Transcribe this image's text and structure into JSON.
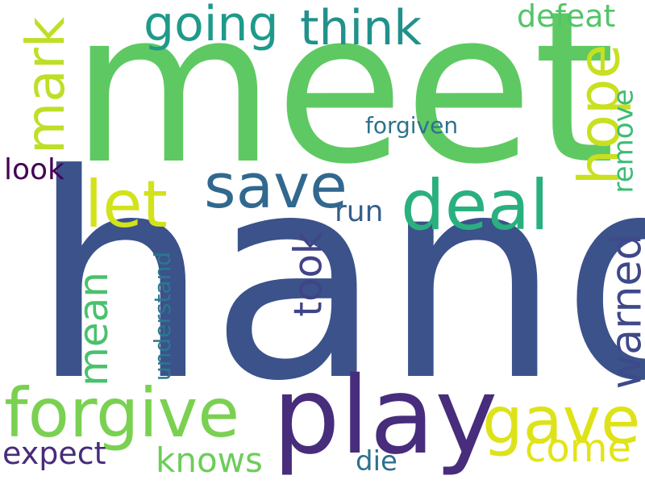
{
  "words": [
    {
      "key": "hand",
      "text": "hand",
      "color": "#3b528b"
    },
    {
      "key": "meet",
      "text": "meet",
      "color": "#5ec962"
    },
    {
      "key": "play",
      "text": "play",
      "color": "#472d7b"
    },
    {
      "key": "save",
      "text": "save",
      "color": "#31688e"
    },
    {
      "key": "deal",
      "text": "deal",
      "color": "#2ab07f"
    },
    {
      "key": "forgive",
      "text": "forgive",
      "color": "#7ad151"
    },
    {
      "key": "gave",
      "text": "gave",
      "color": "#dde318"
    },
    {
      "key": "let",
      "text": "let",
      "color": "#d2e21b"
    },
    {
      "key": "mark",
      "text": "mark",
      "color": "#bddf26"
    },
    {
      "key": "hope",
      "text": "hope",
      "color": "#c8e020"
    },
    {
      "key": "going",
      "text": "going",
      "color": "#1f9a8a"
    },
    {
      "key": "think",
      "text": "think",
      "color": "#21918c"
    },
    {
      "key": "defeat",
      "text": "defeat",
      "color": "#52c569"
    },
    {
      "key": "forgiven",
      "text": "forgiven",
      "color": "#2c728e"
    },
    {
      "key": "remove",
      "text": "remove",
      "color": "#3dbc74"
    },
    {
      "key": "look",
      "text": "look",
      "color": "#440154"
    },
    {
      "key": "run",
      "text": "run",
      "color": "#355f8d"
    },
    {
      "key": "took",
      "text": "took",
      "color": "#414487"
    },
    {
      "key": "mean",
      "text": "mean",
      "color": "#4ac16d"
    },
    {
      "key": "warned",
      "text": "warned",
      "color": "#3e4989"
    },
    {
      "key": "understand",
      "text": "understand",
      "color": "#2a788e"
    },
    {
      "key": "come",
      "text": "come",
      "color": "#e2e418"
    },
    {
      "key": "expect",
      "text": "expect",
      "color": "#472c7a"
    },
    {
      "key": "knows",
      "text": "knows",
      "color": "#6ccd5a"
    },
    {
      "key": "die",
      "text": "die",
      "color": "#2d708e"
    }
  ]
}
